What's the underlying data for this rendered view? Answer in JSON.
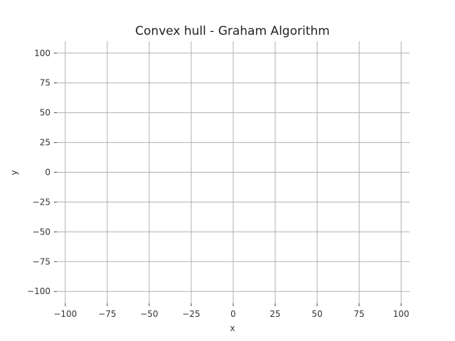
{
  "chart_data": {
    "type": "scatter",
    "title": "Convex hull - Graham Algorithm",
    "xlabel": "x",
    "ylabel": "y",
    "xlim": [
      -105,
      105
    ],
    "ylim": [
      -110,
      110
    ],
    "xticks": [
      -100,
      -75,
      -50,
      -25,
      0,
      25,
      50,
      75,
      100
    ],
    "yticks": [
      -100,
      -75,
      -50,
      -25,
      0,
      25,
      50,
      75,
      100
    ],
    "xtick_labels": [
      "−100",
      "−75",
      "−50",
      "−25",
      "0",
      "25",
      "50",
      "75",
      "100"
    ],
    "ytick_labels": [
      "−100",
      "−75",
      "−50",
      "−25",
      "0",
      "25",
      "50",
      "75",
      "100"
    ],
    "grid": true,
    "series": []
  }
}
